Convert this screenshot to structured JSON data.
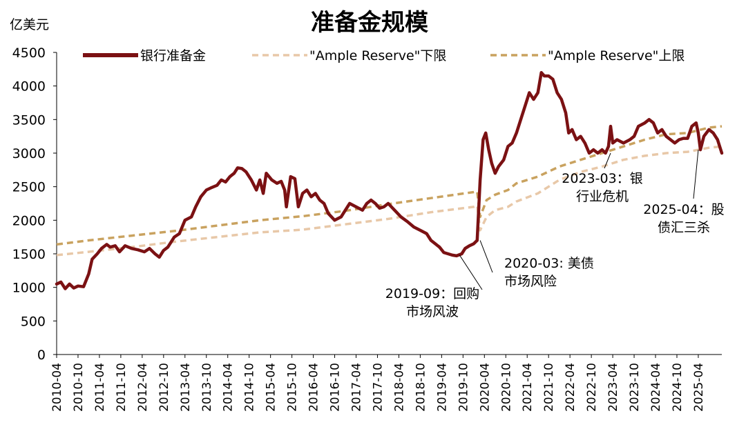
{
  "chart_data": {
    "type": "line",
    "title": "准备金规模",
    "ylabel": "亿美元",
    "xlabel": "",
    "ylim": [
      0,
      4500
    ],
    "yticks": [
      0,
      500,
      1000,
      1500,
      2000,
      2500,
      3000,
      3500,
      4000,
      4500
    ],
    "xrange": [
      2010.25,
      2025.8
    ],
    "xtick_labels": [
      "2010-04",
      "2010-10",
      "2011-04",
      "2011-10",
      "2012-04",
      "2012-10",
      "2013-04",
      "2013-10",
      "2014-04",
      "2014-10",
      "2015-04",
      "2015-10",
      "2016-04",
      "2016-10",
      "2017-04",
      "2017-10",
      "2018-04",
      "2018-10",
      "2019-04",
      "2019-10",
      "2020-04",
      "2020-10",
      "2021-04",
      "2021-10",
      "2022-04",
      "2022-10",
      "2023-04",
      "2023-10",
      "2024-04",
      "2024-10",
      "2025-04"
    ],
    "series": [
      {
        "name": "银行准备金",
        "color": "#7b1113",
        "style": "solid",
        "points": [
          [
            2010.25,
            1050
          ],
          [
            2010.35,
            1080
          ],
          [
            2010.45,
            980
          ],
          [
            2010.55,
            1050
          ],
          [
            2010.65,
            990
          ],
          [
            2010.75,
            1020
          ],
          [
            2010.88,
            1010
          ],
          [
            2011.0,
            1200
          ],
          [
            2011.08,
            1420
          ],
          [
            2011.2,
            1500
          ],
          [
            2011.3,
            1580
          ],
          [
            2011.42,
            1640
          ],
          [
            2011.5,
            1600
          ],
          [
            2011.62,
            1620
          ],
          [
            2011.72,
            1530
          ],
          [
            2011.85,
            1620
          ],
          [
            2012.0,
            1580
          ],
          [
            2012.15,
            1560
          ],
          [
            2012.3,
            1530
          ],
          [
            2012.42,
            1580
          ],
          [
            2012.55,
            1500
          ],
          [
            2012.65,
            1450
          ],
          [
            2012.75,
            1550
          ],
          [
            2012.85,
            1600
          ],
          [
            2013.0,
            1750
          ],
          [
            2013.12,
            1800
          ],
          [
            2013.25,
            2000
          ],
          [
            2013.4,
            2050
          ],
          [
            2013.5,
            2200
          ],
          [
            2013.62,
            2350
          ],
          [
            2013.75,
            2450
          ],
          [
            2013.85,
            2480
          ],
          [
            2014.0,
            2520
          ],
          [
            2014.1,
            2600
          ],
          [
            2014.2,
            2570
          ],
          [
            2014.3,
            2650
          ],
          [
            2014.4,
            2700
          ],
          [
            2014.48,
            2780
          ],
          [
            2014.58,
            2770
          ],
          [
            2014.68,
            2720
          ],
          [
            2014.8,
            2600
          ],
          [
            2014.92,
            2450
          ],
          [
            2015.0,
            2600
          ],
          [
            2015.08,
            2400
          ],
          [
            2015.15,
            2700
          ],
          [
            2015.28,
            2600
          ],
          [
            2015.4,
            2550
          ],
          [
            2015.5,
            2580
          ],
          [
            2015.58,
            2450
          ],
          [
            2015.62,
            2200
          ],
          [
            2015.72,
            2650
          ],
          [
            2015.82,
            2620
          ],
          [
            2015.9,
            2200
          ],
          [
            2016.0,
            2400
          ],
          [
            2016.1,
            2450
          ],
          [
            2016.2,
            2350
          ],
          [
            2016.3,
            2400
          ],
          [
            2016.4,
            2300
          ],
          [
            2016.5,
            2250
          ],
          [
            2016.6,
            2100
          ],
          [
            2016.75,
            2000
          ],
          [
            2016.9,
            2050
          ],
          [
            2017.0,
            2150
          ],
          [
            2017.1,
            2250
          ],
          [
            2017.25,
            2200
          ],
          [
            2017.4,
            2150
          ],
          [
            2017.5,
            2250
          ],
          [
            2017.6,
            2300
          ],
          [
            2017.7,
            2250
          ],
          [
            2017.8,
            2180
          ],
          [
            2017.9,
            2200
          ],
          [
            2018.0,
            2250
          ],
          [
            2018.15,
            2150
          ],
          [
            2018.3,
            2050
          ],
          [
            2018.45,
            1980
          ],
          [
            2018.6,
            1900
          ],
          [
            2018.75,
            1850
          ],
          [
            2018.9,
            1800
          ],
          [
            2019.0,
            1700
          ],
          [
            2019.1,
            1650
          ],
          [
            2019.2,
            1600
          ],
          [
            2019.3,
            1520
          ],
          [
            2019.4,
            1500
          ],
          [
            2019.5,
            1480
          ],
          [
            2019.6,
            1470
          ],
          [
            2019.72,
            1500
          ],
          [
            2019.8,
            1580
          ],
          [
            2019.9,
            1620
          ],
          [
            2020.0,
            1650
          ],
          [
            2020.08,
            1700
          ],
          [
            2020.15,
            2600
          ],
          [
            2020.22,
            3200
          ],
          [
            2020.28,
            3300
          ],
          [
            2020.35,
            3050
          ],
          [
            2020.42,
            2850
          ],
          [
            2020.5,
            2700
          ],
          [
            2020.58,
            2800
          ],
          [
            2020.7,
            2900
          ],
          [
            2020.8,
            3100
          ],
          [
            2020.9,
            3150
          ],
          [
            2021.0,
            3300
          ],
          [
            2021.1,
            3500
          ],
          [
            2021.2,
            3700
          ],
          [
            2021.3,
            3900
          ],
          [
            2021.4,
            3800
          ],
          [
            2021.5,
            3900
          ],
          [
            2021.58,
            4200
          ],
          [
            2021.65,
            4150
          ],
          [
            2021.75,
            4150
          ],
          [
            2021.85,
            4100
          ],
          [
            2021.95,
            3900
          ],
          [
            2022.05,
            3800
          ],
          [
            2022.15,
            3600
          ],
          [
            2022.22,
            3300
          ],
          [
            2022.3,
            3350
          ],
          [
            2022.4,
            3200
          ],
          [
            2022.5,
            3250
          ],
          [
            2022.6,
            3150
          ],
          [
            2022.7,
            3000
          ],
          [
            2022.8,
            3050
          ],
          [
            2022.9,
            3000
          ],
          [
            2023.0,
            3050
          ],
          [
            2023.08,
            3000
          ],
          [
            2023.15,
            3100
          ],
          [
            2023.2,
            3400
          ],
          [
            2023.25,
            3150
          ],
          [
            2023.35,
            3200
          ],
          [
            2023.5,
            3150
          ],
          [
            2023.65,
            3200
          ],
          [
            2023.75,
            3250
          ],
          [
            2023.85,
            3400
          ],
          [
            2024.0,
            3450
          ],
          [
            2024.1,
            3500
          ],
          [
            2024.2,
            3450
          ],
          [
            2024.3,
            3300
          ],
          [
            2024.4,
            3350
          ],
          [
            2024.5,
            3250
          ],
          [
            2024.6,
            3200
          ],
          [
            2024.7,
            3150
          ],
          [
            2024.8,
            3200
          ],
          [
            2024.9,
            3220
          ],
          [
            2025.0,
            3220
          ],
          [
            2025.1,
            3400
          ],
          [
            2025.2,
            3450
          ],
          [
            2025.25,
            3300
          ],
          [
            2025.3,
            3050
          ],
          [
            2025.38,
            3250
          ],
          [
            2025.5,
            3350
          ],
          [
            2025.6,
            3300
          ],
          [
            2025.7,
            3200
          ],
          [
            2025.8,
            3000
          ]
        ]
      },
      {
        "name": "\"Ample Reserve\"下限",
        "color": "#e8c8a8",
        "style": "dashed",
        "points": [
          [
            2010.25,
            1480
          ],
          [
            2011.0,
            1530
          ],
          [
            2012.0,
            1600
          ],
          [
            2013.0,
            1680
          ],
          [
            2014.0,
            1750
          ],
          [
            2015.0,
            1820
          ],
          [
            2016.0,
            1860
          ],
          [
            2017.0,
            1940
          ],
          [
            2018.0,
            2020
          ],
          [
            2019.0,
            2120
          ],
          [
            2020.0,
            2200
          ],
          [
            2020.08,
            2220
          ],
          [
            2020.15,
            1850
          ],
          [
            2020.3,
            2050
          ],
          [
            2020.5,
            2150
          ],
          [
            2020.8,
            2200
          ],
          [
            2021.0,
            2280
          ],
          [
            2021.5,
            2400
          ],
          [
            2022.0,
            2600
          ],
          [
            2022.5,
            2720
          ],
          [
            2023.0,
            2800
          ],
          [
            2023.5,
            2900
          ],
          [
            2024.0,
            2960
          ],
          [
            2024.5,
            3000
          ],
          [
            2025.0,
            3020
          ],
          [
            2025.5,
            3080
          ],
          [
            2025.8,
            3100
          ]
        ]
      },
      {
        "name": "\"Ample Reserve\"上限",
        "color": "#c9a25f",
        "style": "dashed",
        "points": [
          [
            2010.25,
            1640
          ],
          [
            2011.0,
            1700
          ],
          [
            2012.0,
            1770
          ],
          [
            2013.0,
            1840
          ],
          [
            2014.0,
            1920
          ],
          [
            2015.0,
            2000
          ],
          [
            2016.0,
            2060
          ],
          [
            2017.0,
            2140
          ],
          [
            2018.0,
            2240
          ],
          [
            2019.0,
            2330
          ],
          [
            2020.0,
            2420
          ],
          [
            2020.08,
            2430
          ],
          [
            2020.15,
            2050
          ],
          [
            2020.3,
            2300
          ],
          [
            2020.5,
            2380
          ],
          [
            2020.8,
            2450
          ],
          [
            2021.0,
            2550
          ],
          [
            2021.5,
            2650
          ],
          [
            2022.0,
            2800
          ],
          [
            2022.5,
            2900
          ],
          [
            2023.0,
            3000
          ],
          [
            2023.5,
            3100
          ],
          [
            2024.0,
            3200
          ],
          [
            2024.5,
            3280
          ],
          [
            2025.0,
            3300
          ],
          [
            2025.5,
            3380
          ],
          [
            2025.8,
            3400
          ]
        ]
      }
    ],
    "annotations": [
      {
        "lines": [
          "2019-09：回购",
          "市场风波"
        ],
        "point": [
          2019.67,
          1480
        ]
      },
      {
        "lines": [
          "2020-03: 美债",
          "市场风险"
        ],
        "point": [
          2020.15,
          1700
        ]
      },
      {
        "lines": [
          "2023-03：银",
          "行业危机"
        ],
        "point": [
          2023.2,
          3000
        ]
      },
      {
        "lines": [
          "2025-04：股",
          "债汇三杀"
        ],
        "point": [
          2025.25,
          3050
        ]
      }
    ]
  }
}
